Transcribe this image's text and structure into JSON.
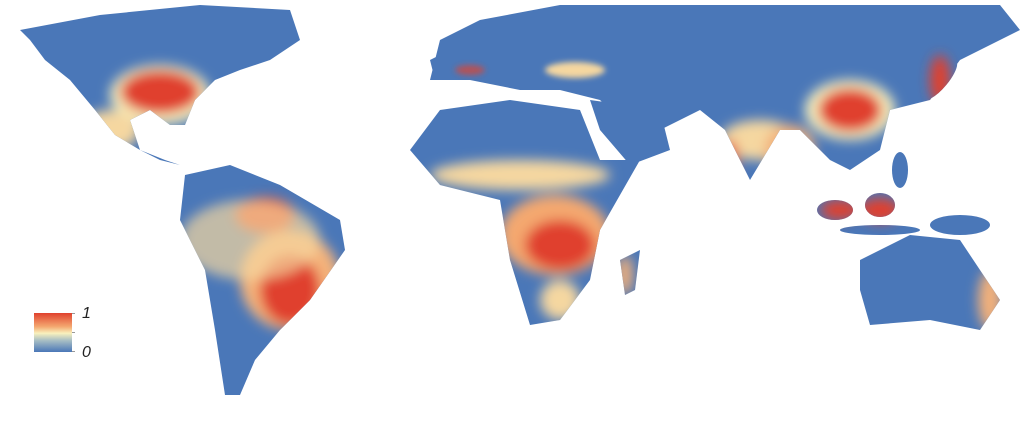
{
  "map": {
    "colors": {
      "low": "#4a77b8",
      "mid": "#f8f1bd",
      "high": "#e0412d",
      "background": "#ffffff"
    },
    "legend": {
      "max_label": "1",
      "min_label": "0"
    }
  }
}
